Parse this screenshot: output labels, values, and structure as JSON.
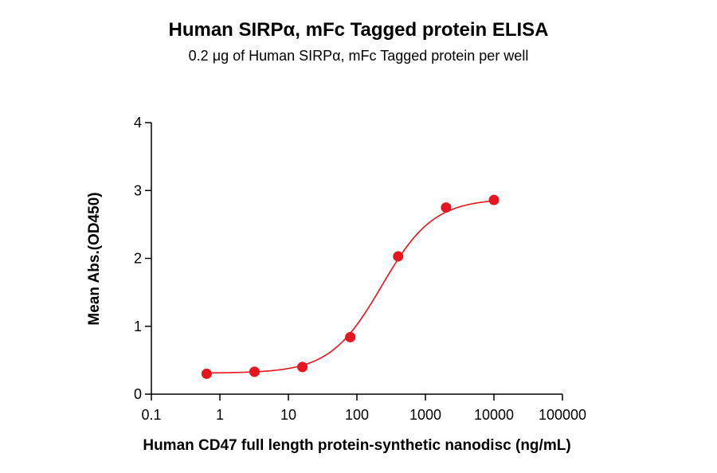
{
  "chart_data": {
    "type": "scatter",
    "title": "Human SIRPα, mFc Tagged protein ELISA",
    "subtitle": "0.2 μg of Human SIRPα, mFc Tagged protein per well",
    "xlabel": "Human CD47 full length protein-synthetic nanodisc (ng/mL)",
    "ylabel": "Mean Abs.(OD450)",
    "x_scale": "log",
    "xlim": [
      0.1,
      100000
    ],
    "ylim": [
      0,
      4
    ],
    "x_ticks": [
      0.1,
      1,
      10,
      100,
      1000,
      10000,
      100000
    ],
    "x_tick_labels": [
      "0.1",
      "1",
      "10",
      "100",
      "1000",
      "10000",
      "100000"
    ],
    "y_ticks": [
      0,
      1,
      2,
      3,
      4
    ],
    "y_tick_labels": [
      "0",
      "1",
      "2",
      "3",
      "4"
    ],
    "grid": false,
    "legend": "none",
    "series": [
      {
        "color": "#e8141e",
        "points": [
          {
            "x": 0.64,
            "y": 0.3
          },
          {
            "x": 3.2,
            "y": 0.33
          },
          {
            "x": 16,
            "y": 0.4
          },
          {
            "x": 80,
            "y": 0.84
          },
          {
            "x": 400,
            "y": 2.03
          },
          {
            "x": 2000,
            "y": 2.75
          },
          {
            "x": 10000,
            "y": 2.86
          }
        ],
        "fit": "4PL sigmoid"
      }
    ]
  }
}
